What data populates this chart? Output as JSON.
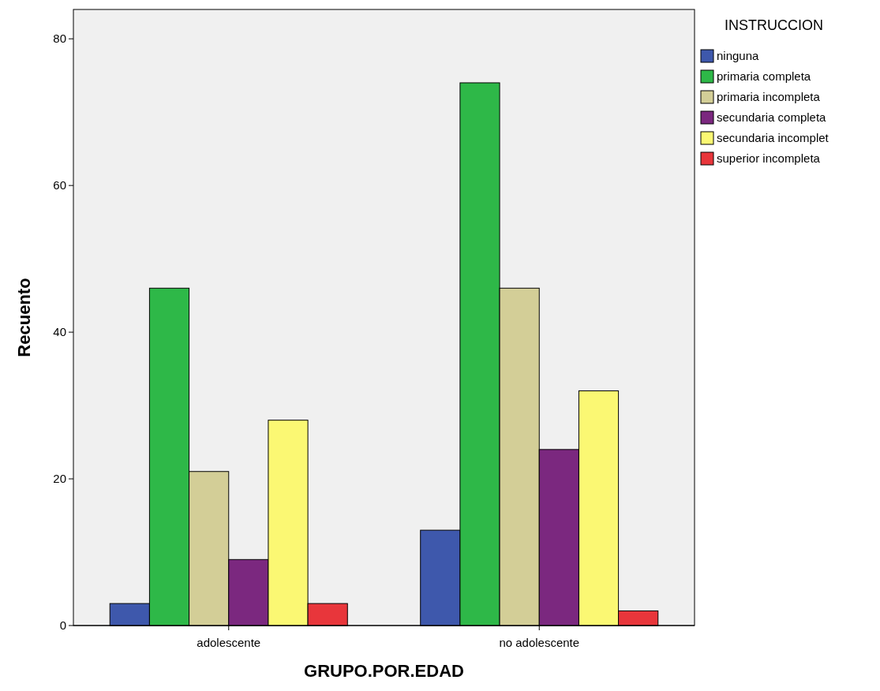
{
  "chart_data": {
    "type": "bar",
    "xlabel": "GRUPO.POR.EDAD",
    "ylabel": "Recuento",
    "legend_title": "INSTRUCCION",
    "legend": "right",
    "categories": [
      "adolescente",
      "no adolescente"
    ],
    "ylim": [
      0,
      84
    ],
    "yticks": [
      0,
      20,
      40,
      60,
      80
    ],
    "series": [
      {
        "name": "ninguna",
        "color": "#3e58ac",
        "values": [
          3,
          13
        ]
      },
      {
        "name": "primaria completa",
        "color": "#2eb848",
        "values": [
          46,
          74
        ]
      },
      {
        "name": "primaria incompleta",
        "color": "#d3ce97",
        "values": [
          21,
          46
        ]
      },
      {
        "name": "secundaria completa",
        "color": "#7b287f",
        "values": [
          9,
          24
        ]
      },
      {
        "name": "secundaria incomplet",
        "color": "#fbf873",
        "values": [
          28,
          32
        ]
      },
      {
        "name": "superior incompleta",
        "color": "#e8363b",
        "values": [
          3,
          2
        ]
      }
    ]
  }
}
